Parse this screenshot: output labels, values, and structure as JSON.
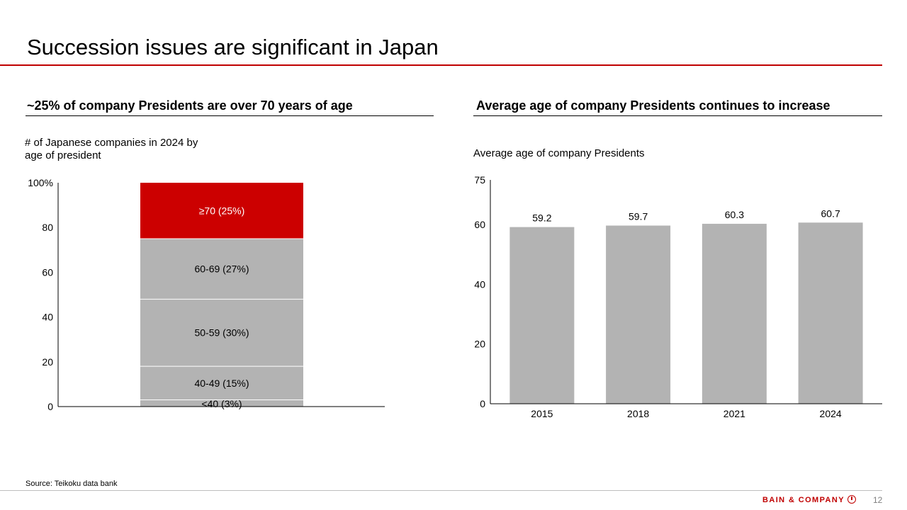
{
  "title": "Succession issues are significant in Japan",
  "left": {
    "heading": "~25% of company Presidents are over 70 years of age",
    "subtitle_line1": "# of Japanese companies in 2024 by",
    "subtitle_line2": "age of president"
  },
  "right": {
    "heading": "Average age of company Presidents continues to increase",
    "subtitle": "Average age of company Presidents"
  },
  "chart_data": [
    {
      "type": "bar",
      "stacked": true,
      "categories": [
        ""
      ],
      "series": [
        {
          "name": "<40",
          "values": [
            3
          ],
          "label": "<40 (3%)",
          "color": "#b3b3b3"
        },
        {
          "name": "40-49",
          "values": [
            15
          ],
          "label": "40-49 (15%)",
          "color": "#b3b3b3"
        },
        {
          "name": "50-59",
          "values": [
            30
          ],
          "label": "50-59 (30%)",
          "color": "#b3b3b3"
        },
        {
          "name": "60-69",
          "values": [
            27
          ],
          "label": "60-69 (27%)",
          "color": "#b3b3b3"
        },
        {
          "name": "≥70",
          "values": [
            25
          ],
          "label": "≥70 (25%)",
          "color": "#cc0000"
        }
      ],
      "ylim": [
        0,
        100
      ],
      "yticks": [
        "0",
        "20",
        "40",
        "60",
        "80",
        "100%"
      ],
      "ytick_values": [
        0,
        20,
        40,
        60,
        80,
        100
      ],
      "grid": false
    },
    {
      "type": "bar",
      "categories": [
        "2015",
        "2018",
        "2021",
        "2024"
      ],
      "values": [
        59.2,
        59.7,
        60.3,
        60.7
      ],
      "data_labels": [
        "59.2",
        "59.7",
        "60.3",
        "60.7"
      ],
      "color": "#b3b3b3",
      "ylim": [
        0,
        75
      ],
      "yticks": [
        "0",
        "20",
        "40",
        "60",
        "75"
      ],
      "ytick_values": [
        0,
        20,
        40,
        60,
        75
      ],
      "grid": false
    }
  ],
  "footer": {
    "source": "Source: Teikoku data bank",
    "logo_text": "BAIN & COMPANY",
    "page_number": "12"
  }
}
